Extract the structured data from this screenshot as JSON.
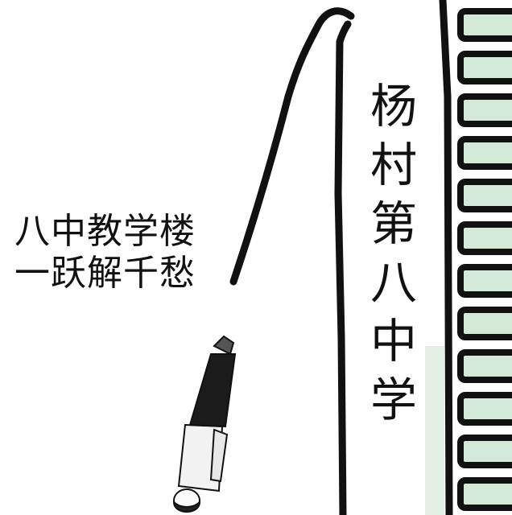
{
  "caption": {
    "line1": "八中教学楼",
    "line2": "一跃解千愁"
  },
  "building": {
    "name_chars": [
      "杨",
      "村",
      "第",
      "八",
      "中",
      "学"
    ]
  },
  "colors": {
    "outline": "#111111",
    "window_fill": "#d4ead6",
    "background": "#ffffff"
  }
}
